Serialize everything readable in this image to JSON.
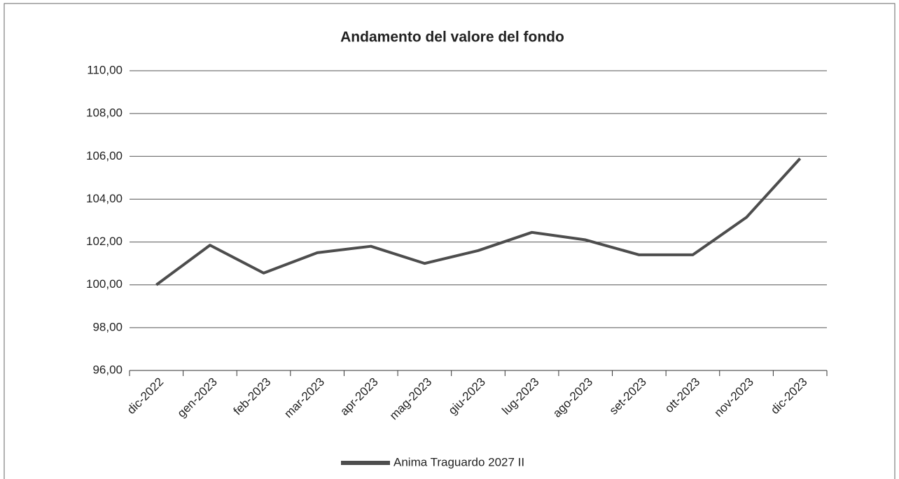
{
  "chart_data": {
    "type": "line",
    "title": "Andamento del valore del fondo",
    "categories": [
      "dic-2022",
      "gen-2023",
      "feb-2023",
      "mar-2023",
      "apr-2023",
      "mag-2023",
      "giu-2023",
      "lug-2023",
      "ago-2023",
      "set-2023",
      "ott-2023",
      "nov-2023",
      "dic-2023"
    ],
    "series": [
      {
        "name": "Anima Traguardo 2027 II",
        "color": "#4d4d4d",
        "values": [
          100.0,
          101.85,
          100.55,
          101.5,
          101.8,
          101.0,
          101.6,
          102.45,
          102.1,
          101.4,
          101.4,
          103.15,
          105.9
        ]
      }
    ],
    "ylim": [
      96,
      110
    ],
    "yticks": [
      {
        "value": 96,
        "label": "96,00"
      },
      {
        "value": 98,
        "label": "98,00"
      },
      {
        "value": 100,
        "label": "100,00"
      },
      {
        "value": 102,
        "label": "102,00"
      },
      {
        "value": 104,
        "label": "104,00"
      },
      {
        "value": 106,
        "label": "106,00"
      },
      {
        "value": 108,
        "label": "108,00"
      },
      {
        "value": 110,
        "label": "110,00"
      }
    ],
    "grid": true,
    "legend": "bottom"
  }
}
